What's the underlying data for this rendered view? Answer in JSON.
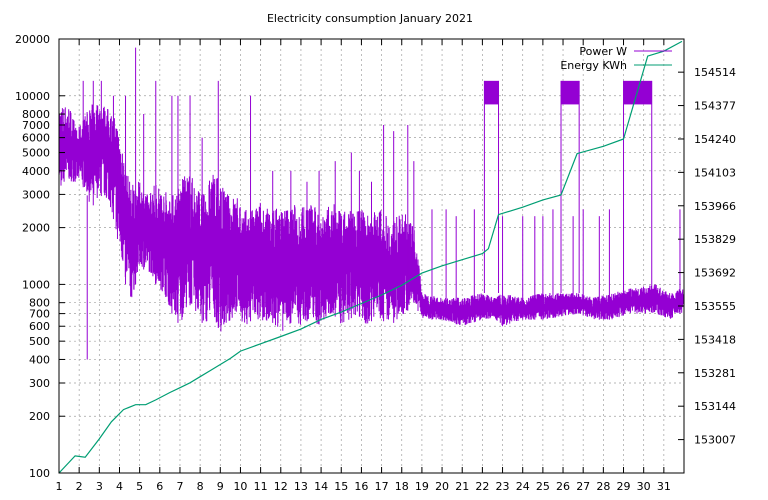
{
  "chart_data": {
    "type": "line",
    "title": "Electricity consumption January 2021",
    "grid": true,
    "legend_position": "top-right",
    "x_ticks": [
      1,
      2,
      3,
      4,
      5,
      6,
      7,
      8,
      9,
      10,
      11,
      12,
      13,
      14,
      15,
      16,
      17,
      18,
      19,
      20,
      21,
      22,
      23,
      24,
      25,
      26,
      27,
      28,
      29,
      30,
      31
    ],
    "xlim": [
      1,
      32
    ],
    "y_left": {
      "scale": "log",
      "lim": [
        100,
        20000
      ],
      "ticks": [
        100,
        200,
        300,
        400,
        500,
        600,
        700,
        800,
        1000,
        2000,
        3000,
        4000,
        5000,
        6000,
        7000,
        8000,
        10000,
        20000
      ]
    },
    "y_right": {
      "lim": [
        152870,
        154650
      ],
      "ticks": [
        153007,
        153144,
        153281,
        153418,
        153555,
        153692,
        153829,
        153966,
        154103,
        154240,
        154377,
        154514
      ]
    },
    "series": [
      {
        "name": "Power W",
        "axis": "left",
        "color": "#9400d3",
        "bands": [
          [
            1.0,
            3300,
            9000
          ],
          [
            1.5,
            3500,
            9000
          ],
          [
            1.9,
            3500,
            6500
          ],
          [
            2.3,
            3200,
            8000
          ],
          [
            2.6,
            2500,
            9000
          ],
          [
            3.0,
            3000,
            9500
          ],
          [
            3.5,
            2700,
            8500
          ],
          [
            4.0,
            1500,
            7000
          ],
          [
            4.3,
            1000,
            4000
          ],
          [
            4.6,
            800,
            3500
          ],
          [
            5.0,
            1200,
            3500
          ],
          [
            5.4,
            1200,
            3000
          ],
          [
            5.8,
            1000,
            3500
          ],
          [
            6.2,
            900,
            3200
          ],
          [
            6.6,
            700,
            3000
          ],
          [
            7.0,
            600,
            3500
          ],
          [
            7.4,
            800,
            4000
          ],
          [
            7.8,
            700,
            3500
          ],
          [
            8.2,
            600,
            3000
          ],
          [
            8.6,
            700,
            4000
          ],
          [
            9.0,
            550,
            3500
          ],
          [
            9.4,
            600,
            3000
          ],
          [
            9.8,
            700,
            3000
          ],
          [
            10.2,
            600,
            2500
          ],
          [
            10.6,
            650,
            2500
          ],
          [
            11.0,
            600,
            2800
          ],
          [
            11.4,
            650,
            2500
          ],
          [
            11.8,
            600,
            2600
          ],
          [
            12.2,
            550,
            2600
          ],
          [
            12.6,
            650,
            2700
          ],
          [
            13.0,
            600,
            2600
          ],
          [
            13.4,
            650,
            2800
          ],
          [
            13.8,
            600,
            2500
          ],
          [
            14.2,
            650,
            2500
          ],
          [
            14.6,
            700,
            2700
          ],
          [
            15.0,
            600,
            2400
          ],
          [
            15.4,
            650,
            2500
          ],
          [
            15.8,
            700,
            2600
          ],
          [
            16.2,
            600,
            2400
          ],
          [
            16.6,
            650,
            2500
          ],
          [
            17.0,
            650,
            2500
          ],
          [
            17.4,
            600,
            2200
          ],
          [
            17.8,
            650,
            2300
          ],
          [
            18.2,
            700,
            2400
          ],
          [
            18.6,
            800,
            2000
          ],
          [
            19.0,
            650,
            900
          ],
          [
            20.0,
            650,
            850
          ],
          [
            21.0,
            600,
            850
          ],
          [
            22.0,
            650,
            900
          ],
          [
            22.6,
            650,
            850
          ],
          [
            23.0,
            600,
            900
          ],
          [
            24.0,
            650,
            850
          ],
          [
            25.0,
            650,
            900
          ],
          [
            26.8,
            700,
            900
          ],
          [
            27.5,
            650,
            850
          ],
          [
            28.5,
            650,
            900
          ],
          [
            29.2,
            700,
            950
          ],
          [
            30.6,
            700,
            1000
          ],
          [
            31.3,
            650,
            900
          ],
          [
            31.8,
            700,
            950
          ]
        ],
        "spikes": [
          [
            1.1,
            7500
          ],
          [
            1.8,
            6500
          ],
          [
            2.2,
            12000
          ],
          [
            2.4,
            400
          ],
          [
            2.7,
            12000
          ],
          [
            3.1,
            12000
          ],
          [
            3.7,
            10000
          ],
          [
            3.9,
            6500
          ],
          [
            4.3,
            10000
          ],
          [
            4.8,
            18000
          ],
          [
            5.2,
            8000
          ],
          [
            5.8,
            12000
          ],
          [
            6.6,
            10000
          ],
          [
            6.9,
            10000
          ],
          [
            7.5,
            10000
          ],
          [
            8.1,
            6000
          ],
          [
            8.9,
            12000
          ],
          [
            10.5,
            10000
          ],
          [
            11.6,
            4000
          ],
          [
            12.5,
            4000
          ],
          [
            13.3,
            3500
          ],
          [
            13.9,
            4000
          ],
          [
            14.7,
            4500
          ],
          [
            15.5,
            5000
          ],
          [
            15.9,
            4000
          ],
          [
            16.5,
            3500
          ],
          [
            17.1,
            7000
          ],
          [
            17.6,
            6500
          ],
          [
            18.3,
            7000
          ],
          [
            18.6,
            4500
          ],
          [
            19.5,
            2500
          ],
          [
            20.2,
            2500
          ],
          [
            20.7,
            2300
          ],
          [
            21.6,
            2500
          ],
          [
            23.0,
            2300
          ],
          [
            24.0,
            2300
          ],
          [
            24.6,
            2300
          ],
          [
            25.0,
            2300
          ],
          [
            25.5,
            2500
          ],
          [
            26.5,
            2300
          ],
          [
            27.0,
            2500
          ],
          [
            27.8,
            2300
          ],
          [
            28.3,
            2500
          ],
          [
            29.0,
            2500
          ],
          [
            31.8,
            2500
          ]
        ],
        "plateaus": [
          [
            22.1,
            22.8,
            9000,
            12000
          ],
          [
            25.9,
            26.8,
            9000,
            12000
          ],
          [
            29.0,
            30.4,
            9000,
            12000
          ]
        ]
      },
      {
        "name": "Energy KWh",
        "axis": "right",
        "color": "#009e73",
        "x": [
          1,
          1.8,
          2.3,
          3,
          3.6,
          4.2,
          4.8,
          5.3,
          5.8,
          6.5,
          7,
          7.5,
          8,
          8.5,
          9,
          9.5,
          10,
          11,
          12,
          13,
          14,
          15,
          16,
          17,
          18,
          19,
          20,
          21,
          22,
          22.3,
          22.8,
          24,
          25,
          25.9,
          26.7,
          28,
          29,
          30.2,
          31,
          31.9
        ],
        "values": [
          152870,
          152940,
          152935,
          153010,
          153080,
          153130,
          153150,
          153150,
          153170,
          153200,
          153220,
          153240,
          153265,
          153290,
          153315,
          153340,
          153370,
          153400,
          153430,
          153460,
          153500,
          153530,
          153565,
          153600,
          153640,
          153690,
          153720,
          153745,
          153770,
          153790,
          153930,
          153960,
          153990,
          154010,
          154180,
          154210,
          154240,
          154580,
          154600,
          154640
        ]
      }
    ]
  }
}
